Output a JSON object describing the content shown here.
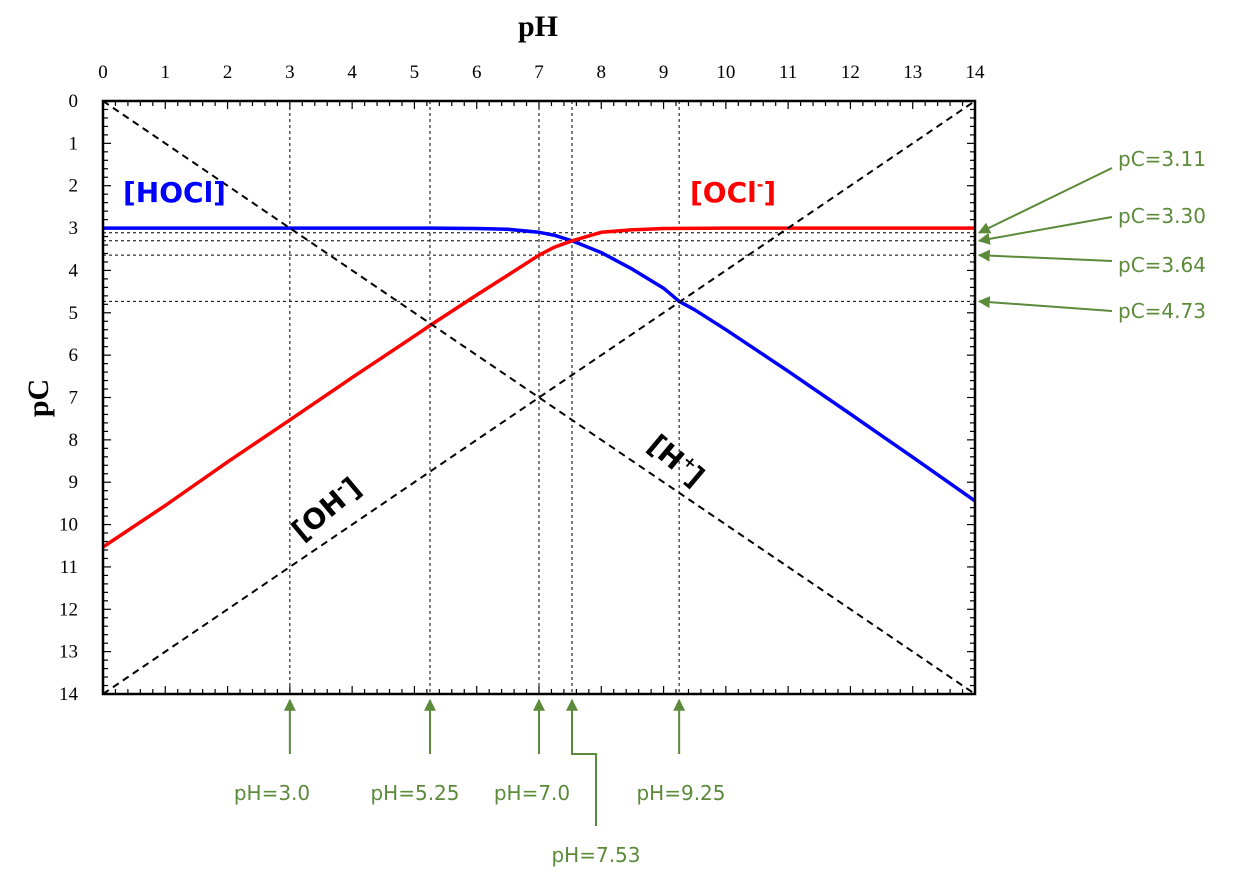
{
  "chart_data": {
    "type": "line",
    "xlabel": "pH",
    "ylabel": "pC",
    "xlim": [
      0,
      14
    ],
    "ylim": [
      0,
      14
    ],
    "y_inverted": true,
    "x_axis_position": "top",
    "x_ticks": [
      0,
      1,
      2,
      3,
      4,
      5,
      6,
      7,
      8,
      9,
      10,
      11,
      12,
      13,
      14
    ],
    "y_ticks": [
      0,
      1,
      2,
      3,
      4,
      5,
      6,
      7,
      8,
      9,
      10,
      11,
      12,
      13,
      14
    ],
    "series": [
      {
        "label": "[HOCl]",
        "label_base": "[HOCl]",
        "label_sup": "",
        "color": "#0000ff",
        "style": "solid",
        "x": [
          0,
          3,
          5.25,
          6,
          6.5,
          7,
          7.25,
          7.53,
          8,
          8.5,
          9,
          9.25,
          9.5,
          10,
          11,
          12,
          13,
          14
        ],
        "y": [
          3.0,
          3.0,
          3.0,
          3.01,
          3.03,
          3.1,
          3.17,
          3.3,
          3.58,
          3.97,
          4.42,
          4.73,
          4.93,
          5.4,
          6.38,
          7.39,
          8.41,
          9.44
        ]
      },
      {
        "label": "[OCl-]",
        "label_base": "[OCl",
        "label_sup": "-",
        "color": "#ff0000",
        "style": "solid",
        "x": [
          0,
          1,
          2,
          3,
          4,
          5,
          5.25,
          6,
          6.5,
          7,
          7.25,
          7.53,
          8,
          8.5,
          9,
          10,
          11,
          12,
          13,
          14
        ],
        "y": [
          10.53,
          9.55,
          8.52,
          7.53,
          6.53,
          5.55,
          5.3,
          4.58,
          4.11,
          3.64,
          3.45,
          3.3,
          3.1,
          3.04,
          3.01,
          3.0,
          3.0,
          3.0,
          3.0,
          3.0
        ]
      },
      {
        "label": "[H+]",
        "label_base": "[H",
        "label_sup": "+",
        "color": "#000000",
        "style": "dashed",
        "x": [
          0,
          14
        ],
        "y": [
          0,
          14
        ]
      },
      {
        "label": "[OH-]",
        "label_base": "[OH",
        "label_sup": "-",
        "color": "#000000",
        "style": "dashed",
        "x": [
          0,
          14
        ],
        "y": [
          14,
          0
        ]
      }
    ],
    "reference_lines": {
      "vertical_pH": [
        3.0,
        5.25,
        7.0,
        7.53,
        9.25
      ],
      "horizontal_pC": [
        3.11,
        3.3,
        3.64,
        4.73
      ]
    },
    "annotations": {
      "ph_labels": [
        "pH=3.0",
        "pH=5.25",
        "pH=7.0",
        "pH=7.53",
        "pH=9.25"
      ],
      "pc_labels": [
        "pC=3.11",
        "pC=3.30",
        "pC=3.64",
        "pC=4.73"
      ],
      "color": "#5b8a3a"
    }
  }
}
